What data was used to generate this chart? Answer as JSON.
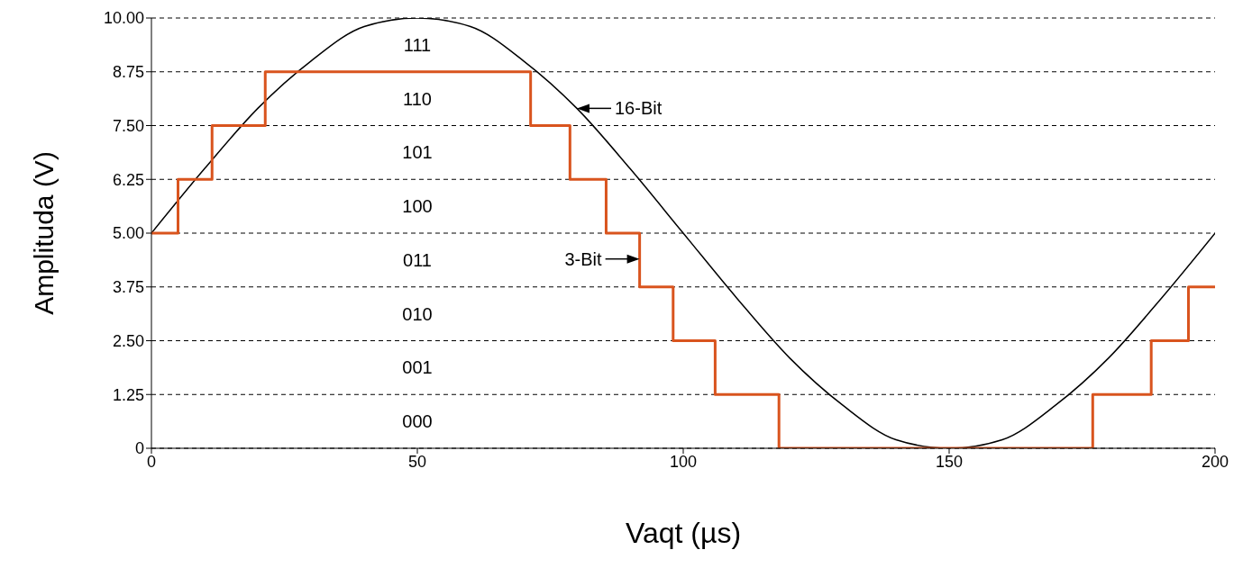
{
  "chart_data": {
    "type": "line",
    "xlabel": "Vaqt (µs)",
    "ylabel": "Amplituda (V)",
    "xlim": [
      0,
      200
    ],
    "xticks": [
      0,
      50,
      100,
      150,
      200
    ],
    "ylim": [
      0,
      10
    ],
    "yticks": [
      0,
      1.25,
      {
        "value": 2.5,
        "label": "2.50"
      },
      3.75,
      {
        "value": 5,
        "label": "5.00"
      },
      6.25,
      {
        "value": 7.5,
        "label": "7.50"
      },
      8.75,
      {
        "value": 10,
        "label": "10.00"
      }
    ],
    "grid": "y",
    "marker": "none",
    "line_style": "solid",
    "series": [
      {
        "color": "#000000",
        "x": [
          0,
          10,
          20,
          30,
          40,
          50,
          60,
          70,
          80,
          90,
          100,
          110,
          120,
          130,
          140,
          150,
          160,
          170,
          180,
          190,
          200
        ],
        "values": [
          5,
          6.5,
          7.9,
          9.0,
          9.8,
          10,
          9.8,
          9.0,
          7.9,
          6.5,
          5,
          3.5,
          2.1,
          1.0,
          0.2,
          0,
          0.2,
          1.0,
          2.1,
          3.5,
          5
        ]
      },
      {
        "type": "step",
        "color": "#d9541e",
        "x": [
          0,
          5,
          11.4,
          21.4,
          71.3,
          78.7,
          85.5,
          91.8,
          98.1,
          106,
          118,
          177,
          188,
          195,
          200
        ],
        "values": [
          5,
          6.25,
          7.5,
          8.75,
          7.5,
          6.25,
          5,
          3.75,
          2.5,
          1.25,
          0,
          1.25,
          2.5,
          3.75,
          3.75
        ]
      }
    ],
    "annotations": [
      "111",
      "110",
      "101",
      "100",
      "011",
      "010",
      "001",
      "000",
      {
        "text": "16-Bit",
        "x": 80,
        "y": 7.9
      },
      {
        "text": "3-Bit",
        "x": 91.8,
        "y": 4.4
      }
    ],
    "legend": false
  }
}
